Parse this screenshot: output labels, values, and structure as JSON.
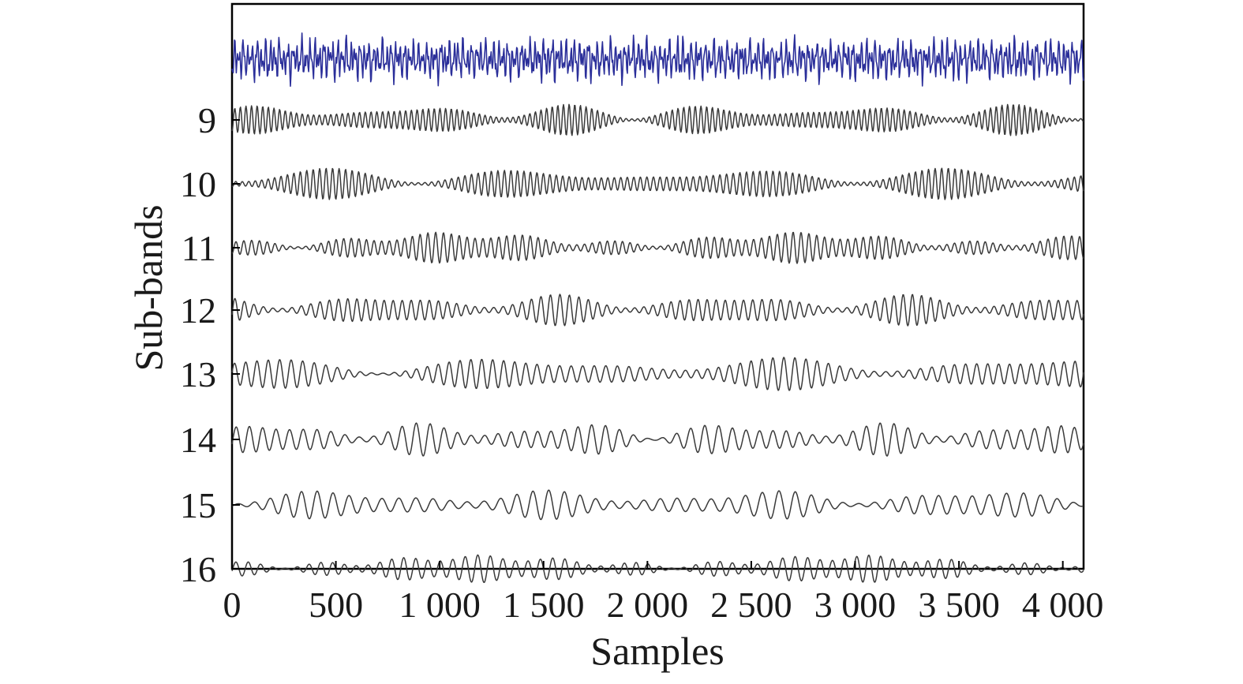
{
  "chart_data": {
    "type": "line",
    "title": "",
    "xlabel": "Samples",
    "ylabel": "Sub-bands",
    "xlim": [
      0,
      4100
    ],
    "x_ticks": [
      0,
      500,
      1000,
      1500,
      2000,
      2500,
      3000,
      3500,
      4000
    ],
    "x_tick_labels": [
      "0",
      "500",
      "1 000",
      "1 500",
      "2 000",
      "2 500",
      "3 000",
      "3 500",
      "4 000"
    ],
    "y_tick_labels": [
      "9",
      "10",
      "11",
      "12",
      "13",
      "14",
      "15",
      "16"
    ],
    "grid": false,
    "legend": "none",
    "colors": {
      "original": "#2b2f9a",
      "subband": "#3a3a3a",
      "axis": "#000000"
    },
    "series": [
      {
        "role": "original-signal",
        "color": "#2b2f9a",
        "cycles": 190,
        "amplitude": 1.0
      },
      {
        "label": "9",
        "cycles": 150,
        "amplitude": 0.85
      },
      {
        "label": "10",
        "cycles": 130,
        "amplitude": 0.85
      },
      {
        "label": "11",
        "cycles": 110,
        "amplitude": 0.85
      },
      {
        "label": "12",
        "cycles": 92,
        "amplitude": 0.85
      },
      {
        "label": "13",
        "cycles": 76,
        "amplitude": 0.9
      },
      {
        "label": "14",
        "cycles": 62,
        "amplitude": 0.9
      },
      {
        "label": "15",
        "cycles": 52,
        "amplitude": 0.8
      },
      {
        "label": "16",
        "cycles": 70,
        "amplitude": 0.75
      }
    ]
  }
}
